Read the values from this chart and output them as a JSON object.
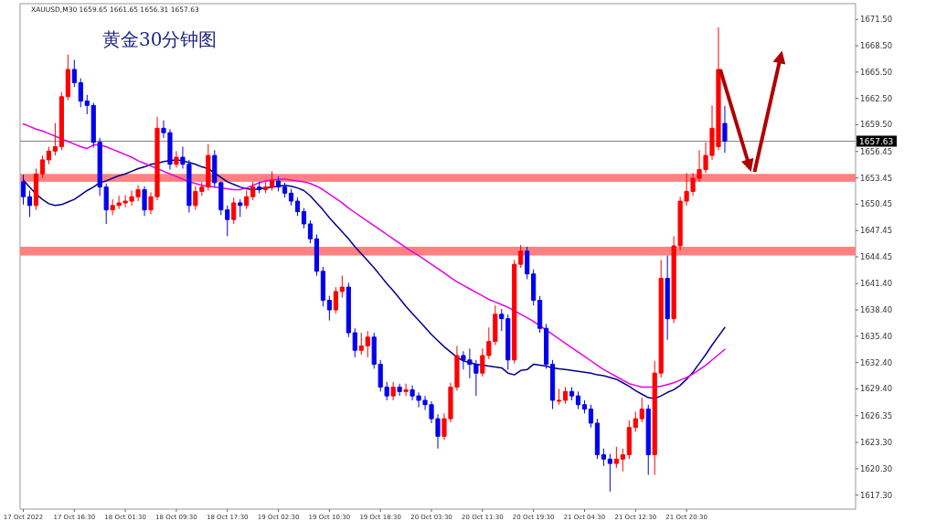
{
  "chart_data": {
    "type": "candlestick",
    "title": "黄金30分钟图",
    "annotations": [
      "XAUUSD,M30 1659.65 1661.65 1656.31 1657.63"
    ],
    "categories": [
      "17 Oct 2022",
      null,
      null,
      null,
      null,
      null,
      null,
      null,
      "17 Oct 16:30",
      null,
      null,
      null,
      null,
      null,
      null,
      null,
      "18 Oct 01:30",
      null,
      null,
      null,
      null,
      null,
      null,
      null,
      "18 Oct 09:30",
      null,
      null,
      null,
      null,
      null,
      null,
      null,
      "18 Oct 17:30",
      null,
      null,
      null,
      null,
      null,
      null,
      null,
      "19 Oct 02:30",
      null,
      null,
      null,
      null,
      null,
      null,
      null,
      "19 Oct 10:30",
      null,
      null,
      null,
      null,
      null,
      null,
      null,
      "19 Oct 18:30",
      null,
      null,
      null,
      null,
      null,
      null,
      null,
      "20 Oct 03:30",
      null,
      null,
      null,
      null,
      null,
      null,
      null,
      "20 Oct 11:30",
      null,
      null,
      null,
      null,
      null,
      null,
      null,
      "20 Oct 19:30",
      null,
      null,
      null,
      null,
      null,
      null,
      null,
      "21 Oct 04:30",
      null,
      null,
      null,
      null,
      null,
      null,
      null,
      "21 Oct 12:30",
      null,
      null,
      null,
      null,
      null,
      null,
      null,
      "21 Oct 20:30",
      null,
      null,
      null,
      null,
      null,
      null
    ],
    "colors": [
      "#0000ee",
      "#0000ee",
      "#ff0000",
      "#ff0000",
      "#ff0000",
      "#ff0000",
      "#ff0000",
      "#ff0000",
      "#0000ee",
      "#0000ee",
      "#0000ee",
      "#0000ee",
      "#0000ee",
      "#0000ee",
      "#ff0000",
      "#ff0000",
      "#ff0000",
      "#ff0000",
      "#ff0000",
      "#0000ee",
      "#ff0000",
      "#ff0000",
      "#0000ee",
      "#0000ee",
      "#ff0000",
      "#0000ee",
      "#0000ee",
      "#ff0000",
      "#ff0000",
      "#ff0000",
      "#0000ee",
      "#0000ee",
      "#0000ee",
      "#ff0000",
      "#0000ee",
      "#ff0000",
      "#ff0000",
      "#0000ee",
      "#ff0000",
      "#ff0000",
      "#0000ee",
      "#0000ee",
      "#0000ee",
      "#0000ee",
      "#0000ee",
      "#0000ee",
      "#0000ee",
      "#0000ee",
      "#0000ee",
      "#ff0000",
      "#ff0000",
      "#0000ee",
      "#0000ee",
      "#ff0000",
      "#ff0000",
      "#0000ee",
      "#0000ee",
      "#0000ee",
      "#ff0000",
      "#0000ee",
      "#ff0000",
      "#0000ee",
      "#0000ee",
      "#0000ee",
      "#0000ee",
      "#0000ee",
      "#ff0000",
      "#ff0000",
      "#ff0000",
      "#0000ee",
      "#0000ee",
      "#0000ee",
      "#ff0000",
      "#ff0000",
      "#ff0000",
      "#0000ee",
      "#0000ee",
      "#ff0000",
      "#ff0000",
      "#0000ee",
      "#0000ee",
      "#0000ee",
      "#0000ee",
      "#0000ee",
      "#ff0000",
      "#ff0000",
      "#0000ee",
      "#0000ee",
      "#0000ee",
      "#0000ee",
      "#0000ee",
      "#0000ee",
      "#0000ee",
      "#ff0000",
      "#ff0000",
      "#ff0000",
      "#ff0000",
      "#ff0000",
      "#0000ee",
      "#ff0000",
      "#ff0000",
      "#0000ee",
      "#ff0000",
      "#ff0000",
      "#ff0000",
      "#ff0000",
      "#ff0000",
      "#ff0000",
      "#ff0000",
      "#ff0000",
      "#0000ee"
    ],
    "ohlc": [
      [
        1653.0,
        1653.8,
        1650.4,
        1651.3
      ],
      [
        1651.3,
        1652.0,
        1649.0,
        1650.3
      ],
      [
        1650.3,
        1654.5,
        1649.8,
        1653.9
      ],
      [
        1653.9,
        1656.0,
        1653.4,
        1655.5
      ],
      [
        1655.5,
        1657.0,
        1655.0,
        1656.5
      ],
      [
        1656.5,
        1659.7,
        1656.0,
        1657.0
      ],
      [
        1657.0,
        1663.2,
        1656.6,
        1662.7
      ],
      [
        1662.7,
        1667.5,
        1662.3,
        1665.8
      ],
      [
        1665.8,
        1666.9,
        1663.8,
        1664.3
      ],
      [
        1664.3,
        1664.8,
        1661.5,
        1662.2
      ],
      [
        1662.2,
        1662.9,
        1660.7,
        1661.7
      ],
      [
        1661.7,
        1662.0,
        1656.9,
        1657.5
      ],
      [
        1657.5,
        1658.0,
        1651.4,
        1652.4
      ],
      [
        1652.4,
        1652.8,
        1648.2,
        1649.8
      ],
      [
        1649.8,
        1651.0,
        1649.2,
        1650.3
      ],
      [
        1650.3,
        1651.4,
        1649.9,
        1650.6
      ],
      [
        1650.6,
        1651.5,
        1650.1,
        1650.8
      ],
      [
        1650.8,
        1652.0,
        1650.3,
        1651.3
      ],
      [
        1651.3,
        1652.6,
        1650.8,
        1652.1
      ],
      [
        1652.1,
        1652.5,
        1649.1,
        1649.8
      ],
      [
        1649.8,
        1651.8,
        1649.3,
        1651.3
      ],
      [
        1651.3,
        1660.4,
        1650.9,
        1659.1
      ],
      [
        1659.1,
        1660.0,
        1658.0,
        1658.6
      ],
      [
        1658.6,
        1659.0,
        1654.4,
        1655.0
      ],
      [
        1655.0,
        1656.5,
        1654.6,
        1655.8
      ],
      [
        1655.8,
        1657.0,
        1654.5,
        1655.0
      ],
      [
        1655.0,
        1655.5,
        1649.5,
        1650.3
      ],
      [
        1650.3,
        1652.5,
        1649.8,
        1651.9
      ],
      [
        1651.9,
        1653.0,
        1651.4,
        1652.4
      ],
      [
        1652.4,
        1657.3,
        1652.0,
        1656.0
      ],
      [
        1656.0,
        1656.6,
        1652.4,
        1652.9
      ],
      [
        1652.9,
        1653.0,
        1649.2,
        1649.8
      ],
      [
        1649.8,
        1650.3,
        1646.8,
        1648.7
      ],
      [
        1648.7,
        1651.2,
        1648.2,
        1650.6
      ],
      [
        1650.6,
        1651.0,
        1649.0,
        1650.3
      ],
      [
        1650.3,
        1652.0,
        1649.9,
        1651.3
      ],
      [
        1651.3,
        1653.0,
        1650.9,
        1652.4
      ],
      [
        1652.4,
        1653.0,
        1651.7,
        1652.1
      ],
      [
        1652.1,
        1653.0,
        1651.7,
        1652.4
      ],
      [
        1652.4,
        1654.2,
        1652.0,
        1653.1
      ],
      [
        1653.1,
        1653.6,
        1651.9,
        1652.4
      ],
      [
        1652.4,
        1652.9,
        1651.2,
        1651.7
      ],
      [
        1651.7,
        1652.2,
        1650.3,
        1650.8
      ],
      [
        1650.8,
        1651.2,
        1649.1,
        1649.6
      ],
      [
        1649.6,
        1650.0,
        1647.7,
        1648.2
      ],
      [
        1648.2,
        1648.6,
        1646.0,
        1646.5
      ],
      [
        1646.5,
        1647.0,
        1642.3,
        1642.8
      ],
      [
        1642.8,
        1643.3,
        1638.8,
        1639.5
      ],
      [
        1639.5,
        1640.0,
        1637.2,
        1638.4
      ],
      [
        1638.4,
        1641.0,
        1638.0,
        1640.5
      ],
      [
        1640.5,
        1642.3,
        1639.8,
        1641.0
      ],
      [
        1641.0,
        1641.5,
        1635.3,
        1635.8
      ],
      [
        1635.8,
        1636.3,
        1633.0,
        1633.8
      ],
      [
        1633.8,
        1635.8,
        1633.3,
        1634.3
      ],
      [
        1634.3,
        1636.0,
        1633.0,
        1635.3
      ],
      [
        1635.3,
        1635.8,
        1631.7,
        1632.2
      ],
      [
        1632.2,
        1632.7,
        1629.1,
        1629.6
      ],
      [
        1629.6,
        1630.2,
        1628.1,
        1628.6
      ],
      [
        1628.6,
        1630.2,
        1628.1,
        1629.6
      ],
      [
        1629.6,
        1630.0,
        1628.6,
        1629.1
      ],
      [
        1629.1,
        1630.0,
        1628.6,
        1629.3
      ],
      [
        1629.3,
        1629.8,
        1628.1,
        1628.6
      ],
      [
        1628.6,
        1629.0,
        1627.3,
        1628.1
      ],
      [
        1628.1,
        1628.6,
        1627.0,
        1627.6
      ],
      [
        1627.6,
        1628.0,
        1625.5,
        1626.0
      ],
      [
        1626.0,
        1626.5,
        1622.6,
        1624.0
      ],
      [
        1624.0,
        1626.6,
        1623.6,
        1626.0
      ],
      [
        1626.0,
        1630.1,
        1625.6,
        1629.6
      ],
      [
        1629.6,
        1634.3,
        1629.2,
        1633.2
      ],
      [
        1633.2,
        1633.7,
        1631.6,
        1632.7
      ],
      [
        1632.7,
        1634.0,
        1630.6,
        1632.2
      ],
      [
        1632.2,
        1632.7,
        1628.6,
        1631.2
      ],
      [
        1631.2,
        1634.0,
        1630.8,
        1633.2
      ],
      [
        1633.2,
        1636.4,
        1632.8,
        1634.8
      ],
      [
        1634.8,
        1638.9,
        1634.4,
        1637.9
      ],
      [
        1637.9,
        1638.5,
        1636.0,
        1637.4
      ],
      [
        1637.4,
        1637.9,
        1631.6,
        1632.7
      ],
      [
        1632.7,
        1644.1,
        1632.3,
        1643.6
      ],
      [
        1643.6,
        1645.8,
        1643.2,
        1645.1
      ],
      [
        1645.1,
        1645.6,
        1641.9,
        1642.5
      ],
      [
        1642.5,
        1643.0,
        1638.9,
        1639.5
      ],
      [
        1639.5,
        1640.0,
        1635.8,
        1636.3
      ],
      [
        1636.3,
        1636.8,
        1631.7,
        1632.2
      ],
      [
        1632.2,
        1632.7,
        1627.1,
        1628.1
      ],
      [
        1628.1,
        1629.4,
        1627.6,
        1628.1
      ],
      [
        1628.1,
        1629.6,
        1627.7,
        1629.1
      ],
      [
        1629.1,
        1629.6,
        1628.1,
        1628.6
      ],
      [
        1628.6,
        1629.1,
        1627.1,
        1627.6
      ],
      [
        1627.6,
        1628.1,
        1626.6,
        1627.1
      ],
      [
        1627.1,
        1627.6,
        1625.0,
        1625.5
      ],
      [
        1625.5,
        1626.0,
        1621.4,
        1621.9
      ],
      [
        1621.9,
        1622.6,
        1620.6,
        1621.4
      ],
      [
        1621.4,
        1622.0,
        1617.7,
        1620.9
      ],
      [
        1620.9,
        1622.8,
        1620.4,
        1621.4
      ],
      [
        1621.4,
        1622.6,
        1620.0,
        1621.9
      ],
      [
        1621.9,
        1625.8,
        1621.4,
        1625.0
      ],
      [
        1625.0,
        1626.8,
        1624.5,
        1626.0
      ],
      [
        1626.0,
        1628.4,
        1625.6,
        1627.1
      ],
      [
        1627.1,
        1627.6,
        1619.6,
        1621.9
      ],
      [
        1621.9,
        1632.6,
        1619.6,
        1631.2
      ],
      [
        1631.2,
        1644.1,
        1630.7,
        1642.0
      ],
      [
        1642.0,
        1644.6,
        1635.0,
        1637.4
      ],
      [
        1637.4,
        1646.8,
        1636.9,
        1645.7
      ],
      [
        1645.7,
        1651.3,
        1645.2,
        1650.8
      ],
      [
        1650.8,
        1654.0,
        1650.3,
        1651.9
      ],
      [
        1651.9,
        1654.0,
        1651.4,
        1653.4
      ],
      [
        1653.4,
        1656.6,
        1653.0,
        1654.4
      ],
      [
        1654.4,
        1657.5,
        1654.0,
        1656.0
      ],
      [
        1656.0,
        1661.7,
        1655.5,
        1659.1
      ],
      [
        1657.0,
        1670.6,
        1656.6,
        1665.8
      ],
      [
        1659.65,
        1661.65,
        1656.31,
        1657.63
      ]
    ],
    "series": [
      {
        "type": "line",
        "color": "#00008b",
        "values": [
          1653.2,
          1652.4,
          1651.6,
          1651.0,
          1650.5,
          1650.3,
          1650.4,
          1650.7,
          1651.0,
          1651.5,
          1652.0,
          1652.4,
          1652.9,
          1653.1,
          1653.4,
          1653.7,
          1653.9,
          1654.2,
          1654.5,
          1654.7,
          1655.0,
          1655.1,
          1655.3,
          1655.4,
          1655.5,
          1655.4,
          1655.2,
          1655.0,
          1654.7,
          1654.5,
          1654.0,
          1653.5,
          1653.0,
          1652.7,
          1652.4,
          1652.2,
          1652.1,
          1652.2,
          1652.3,
          1652.4,
          1652.5,
          1652.6,
          1652.5,
          1652.3,
          1652.0,
          1651.4,
          1650.6,
          1649.8,
          1648.9,
          1648.1,
          1647.3,
          1646.5,
          1645.6,
          1644.8,
          1644.0,
          1643.2,
          1642.3,
          1641.4,
          1640.6,
          1639.7,
          1638.8,
          1638.0,
          1637.2,
          1636.4,
          1635.6,
          1634.9,
          1634.2,
          1633.6,
          1633.0,
          1632.6,
          1632.4,
          1632.2,
          1632.1,
          1632.0,
          1631.9,
          1631.8,
          1631.2,
          1631.0,
          1631.5,
          1631.6,
          1632.2,
          1632.1,
          1632.0,
          1631.8,
          1631.7,
          1631.6,
          1631.5,
          1631.4,
          1631.3,
          1631.2,
          1631.0,
          1630.9,
          1630.7,
          1630.5,
          1630.1,
          1629.7,
          1629.2,
          1628.8,
          1628.4,
          1628.3,
          1628.6,
          1629.0,
          1629.3,
          1629.8,
          1630.5,
          1631.3,
          1632.3,
          1633.3,
          1634.4,
          1635.4,
          1636.4
        ]
      },
      {
        "type": "line",
        "color": "#e600e6",
        "values": [
          1659.6,
          1659.3,
          1659.0,
          1658.8,
          1658.5,
          1658.2,
          1657.9,
          1657.6,
          1657.3,
          1657.0,
          1656.8,
          1657.2,
          1657.2,
          1657.0,
          1656.7,
          1656.4,
          1656.1,
          1655.8,
          1655.4,
          1655.1,
          1654.8,
          1654.5,
          1654.2,
          1653.9,
          1653.6,
          1653.3,
          1653.0,
          1652.8,
          1652.6,
          1652.5,
          1652.4,
          1652.3,
          1652.2,
          1652.1,
          1652.1,
          1652.3,
          1652.6,
          1652.9,
          1653.1,
          1653.2,
          1653.3,
          1653.3,
          1653.2,
          1653.1,
          1653.0,
          1652.8,
          1652.5,
          1652.1,
          1651.6,
          1651.1,
          1650.6,
          1650.0,
          1649.5,
          1649.0,
          1648.5,
          1648.0,
          1647.5,
          1647.0,
          1646.5,
          1646.0,
          1645.5,
          1645.0,
          1644.6,
          1644.1,
          1643.6,
          1643.1,
          1642.6,
          1642.1,
          1641.6,
          1641.2,
          1640.8,
          1640.4,
          1640.0,
          1639.6,
          1639.3,
          1639.0,
          1638.7,
          1638.3,
          1637.9,
          1637.5,
          1637.1,
          1636.6,
          1636.1,
          1635.6,
          1635.1,
          1634.6,
          1634.1,
          1633.6,
          1633.1,
          1632.6,
          1632.1,
          1631.6,
          1631.2,
          1630.8,
          1630.4,
          1630.0,
          1629.8,
          1629.6,
          1629.6,
          1629.6,
          1629.7,
          1629.9,
          1630.1,
          1630.4,
          1630.7,
          1631.1,
          1631.6,
          1632.1,
          1632.7,
          1633.3,
          1633.9
        ]
      }
    ],
    "bands": [
      {
        "axis": "y",
        "from": 1653.0,
        "to": 1653.9,
        "color": "#ff8080"
      },
      {
        "axis": "y",
        "from": 1644.6,
        "to": 1645.6,
        "color": "#ff8080"
      }
    ],
    "ref_lines": [
      {
        "axis": "y",
        "value": 1657.63,
        "label": "1657.63",
        "color": "#808080"
      }
    ],
    "ylim": [
      1615.7,
      1673.3
    ],
    "yticks": [
      {
        "value": 1671.5,
        "label": "1671.50"
      },
      {
        "value": 1668.5,
        "label": "1668.50"
      },
      {
        "value": 1665.5,
        "label": "1665.50"
      },
      {
        "value": 1662.5,
        "label": "1662.50"
      },
      {
        "value": 1659.5,
        "label": "1659.50"
      },
      1656.45,
      1653.45,
      1650.45,
      1647.45,
      1644.45,
      {
        "value": 1641.4,
        "label": "1641.40"
      },
      {
        "value": 1638.4,
        "label": "1638.40"
      },
      {
        "value": 1635.4,
        "label": "1635.40"
      },
      {
        "value": 1632.4,
        "label": "1632.40"
      },
      {
        "value": 1629.4,
        "label": "1629.40"
      },
      1626.35,
      {
        "value": 1623.3,
        "label": "1623.30"
      },
      {
        "value": 1620.3,
        "label": "1620.30"
      },
      {
        "value": 1617.3,
        "label": "1617.30"
      }
    ],
    "grid": false
  }
}
